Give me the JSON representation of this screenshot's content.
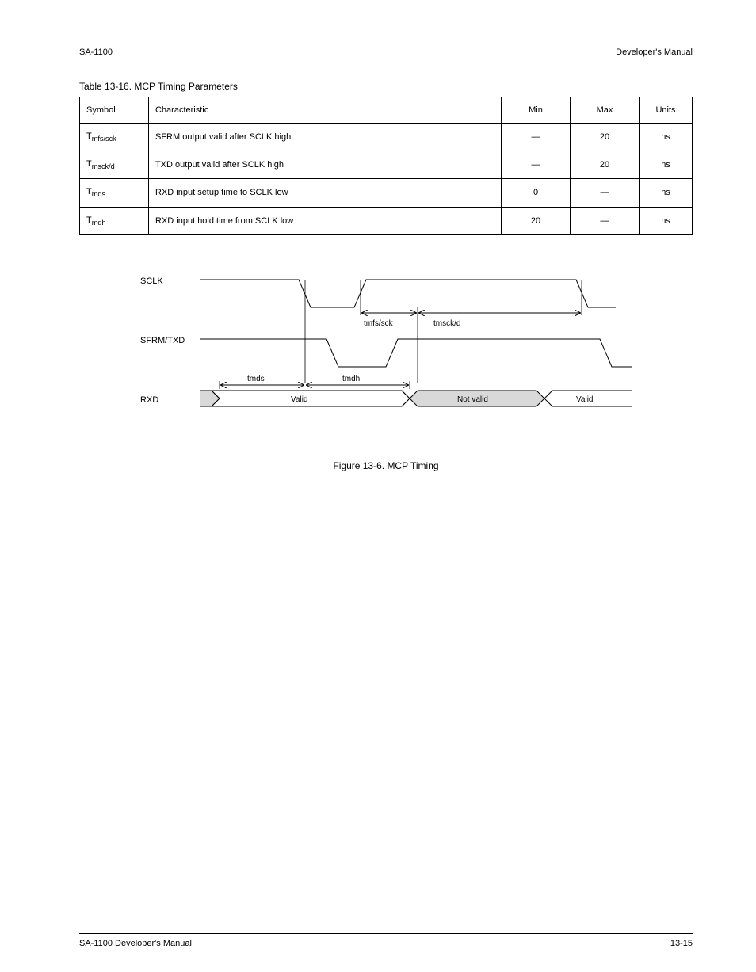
{
  "header": {
    "doc_title": "SA-1100",
    "doc_section": "Developer's Manual"
  },
  "table": {
    "title": "Table 13-16. MCP Timing Parameters",
    "columns": [
      "Symbol",
      "Characteristic",
      "Min",
      "Max",
      "Units"
    ],
    "rows": [
      {
        "sym": "T<sub>mfs/sck</sub>",
        "char": "SFRM output valid after SCLK high",
        "min": "—",
        "max": "20",
        "units": "ns"
      },
      {
        "sym": "T<sub>msck/d</sub>",
        "char": "TXD output valid after SCLK high",
        "min": "—",
        "max": "20",
        "units": "ns"
      },
      {
        "sym": "T<sub>mds</sub>",
        "char": "RXD input setup time to SCLK low",
        "min": "0",
        "max": "—",
        "units": "ns"
      },
      {
        "sym": "T<sub>mdh</sub>",
        "char": "RXD input hold time from SCLK low",
        "min": "20",
        "max": "—",
        "units": "ns"
      }
    ]
  },
  "figure": {
    "signals": {
      "sclk": "SCLK",
      "sfrm": "SFRM/TXD",
      "rxd": "RXD"
    },
    "labels": {
      "tmds": "tmds",
      "tmfs_sck": "tmfs/sck",
      "tmsck_d": "tmsck/d",
      "tmdh": "tmdh",
      "valid": "Valid",
      "not_valid": "Not valid"
    },
    "caption": "Figure 13-6.  MCP Timing",
    "colors": {
      "line": "#000000",
      "invalid_fill": "#d9d9d9",
      "bg": "#ffffff"
    }
  },
  "footer": {
    "left": "SA-1100 Developer's Manual",
    "right": "13-15"
  }
}
